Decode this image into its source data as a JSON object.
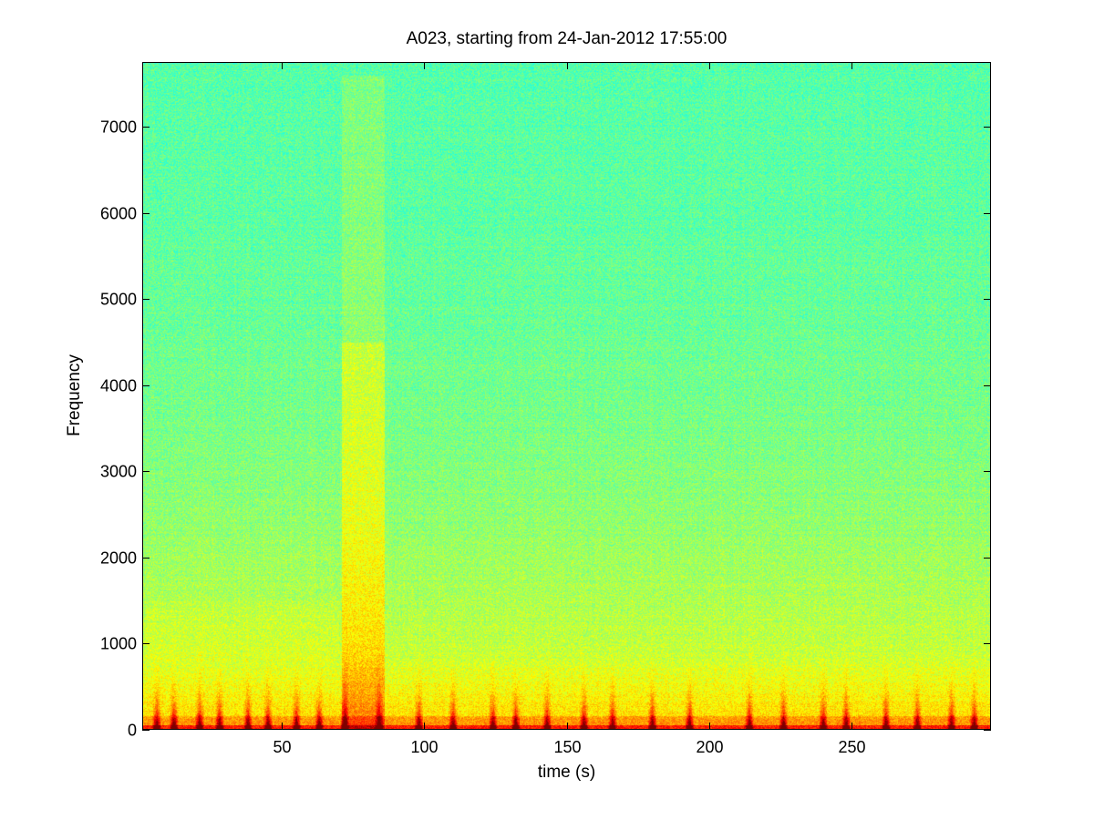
{
  "chart_data": {
    "type": "heatmap",
    "title": "A023, starting from 24-Jan-2012 17:55:00",
    "xlabel": "time (s)",
    "ylabel": "Frequency",
    "xlim": [
      1,
      299
    ],
    "ylim": [
      0,
      7750
    ],
    "xticks": [
      50,
      100,
      150,
      200,
      250
    ],
    "yticks": [
      0,
      1000,
      2000,
      3000,
      4000,
      5000,
      6000,
      7000
    ],
    "colormap": "jet",
    "colors": {
      "background_high_freq": "#66ff99",
      "mid_band": "#ccff44",
      "low_band": "#ffee00",
      "transients": "#b40000"
    },
    "bright_segment": {
      "x_start": 71,
      "x_end": 86,
      "freq_max": 4500
    },
    "transient_events_s": [
      6,
      12,
      21,
      28,
      38,
      45,
      55,
      63,
      72,
      84,
      98,
      110,
      124,
      132,
      143,
      156,
      166,
      180,
      193,
      214,
      226,
      240,
      248,
      262,
      273,
      285,
      293
    ],
    "grid": false
  }
}
